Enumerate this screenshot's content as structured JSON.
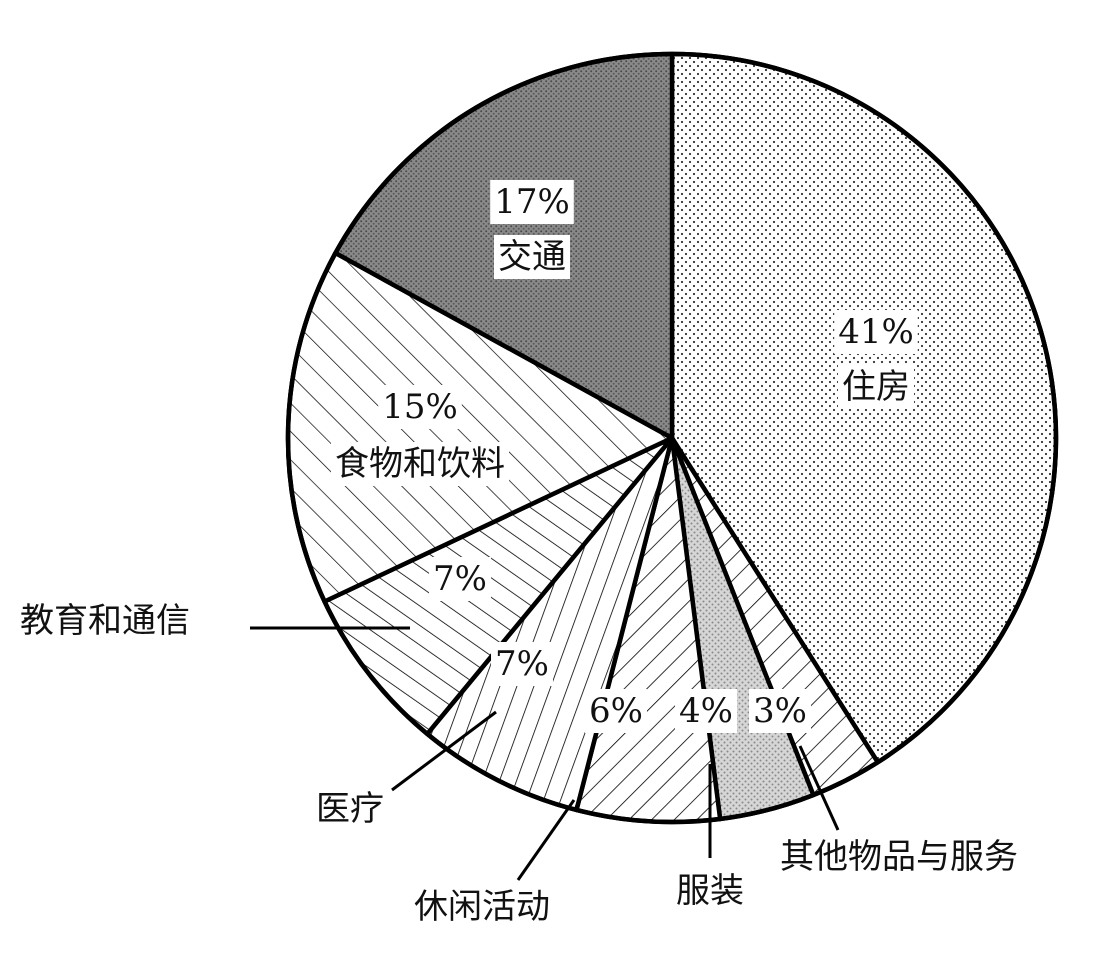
{
  "chart_data": {
    "type": "pie",
    "title": "",
    "unit": "%",
    "slices": [
      {
        "key": "housing",
        "label": "住房",
        "value": 41,
        "value_label": "41%",
        "pattern": "dots-fine",
        "color": "#ffffff"
      },
      {
        "key": "other",
        "label": "其他物品与服务",
        "value": 3,
        "value_label": "3%",
        "pattern": "hatch-back",
        "color": "#ffffff"
      },
      {
        "key": "clothing",
        "label": "服装",
        "value": 4,
        "value_label": "4%",
        "pattern": "dots-gray",
        "color": "#d8d8d8"
      },
      {
        "key": "leisure",
        "label": "休闲活动",
        "value": 6,
        "value_label": "6%",
        "pattern": "hatch-back",
        "color": "#ffffff"
      },
      {
        "key": "medical",
        "label": "医疗",
        "value": 7,
        "value_label": "7%",
        "pattern": "hatch-vert",
        "color": "#ffffff"
      },
      {
        "key": "education",
        "label": "教育和通信",
        "value": 7,
        "value_label": "7%",
        "pattern": "hatch-fwd",
        "color": "#ffffff"
      },
      {
        "key": "food",
        "label": "食物和饮料",
        "value": 15,
        "value_label": "15%",
        "pattern": "hatch-fwd-wide",
        "color": "#ffffff"
      },
      {
        "key": "transport",
        "label": "交通",
        "value": 17,
        "value_label": "17%",
        "pattern": "dark-stipple",
        "color": "#7a7a7a"
      }
    ]
  }
}
